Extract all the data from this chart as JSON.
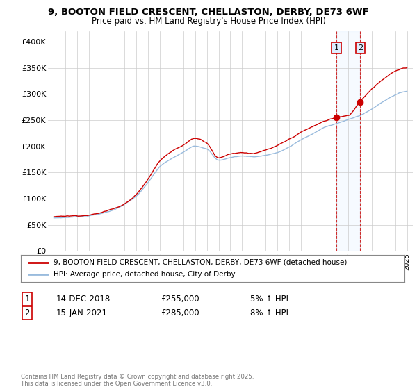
{
  "title": "9, BOOTON FIELD CRESCENT, CHELLASTON, DERBY, DE73 6WF",
  "subtitle": "Price paid vs. HM Land Registry's House Price Index (HPI)",
  "legend1": "9, BOOTON FIELD CRESCENT, CHELLASTON, DERBY, DE73 6WF (detached house)",
  "legend2": "HPI: Average price, detached house, City of Derby",
  "annotation1_date": "14-DEC-2018",
  "annotation1_price": "£255,000",
  "annotation1_hpi": "5% ↑ HPI",
  "annotation2_date": "15-JAN-2021",
  "annotation2_price": "£285,000",
  "annotation2_hpi": "8% ↑ HPI",
  "footnote": "Contains HM Land Registry data © Crown copyright and database right 2025.\nThis data is licensed under the Open Government Licence v3.0.",
  "red_color": "#cc0000",
  "blue_color": "#99bbdd",
  "shade_color": "#ddeeff",
  "ylim": [
    0,
    420000
  ],
  "yticks": [
    0,
    50000,
    100000,
    150000,
    200000,
    250000,
    300000,
    350000,
    400000
  ],
  "ytick_labels": [
    "£0",
    "£50K",
    "£100K",
    "£150K",
    "£200K",
    "£250K",
    "£300K",
    "£350K",
    "£400K"
  ],
  "sale1_x": 2019.0,
  "sale2_x": 2021.04,
  "sale1_y": 255000,
  "sale2_y": 285000,
  "xmin": 1994.5,
  "xmax": 2025.5,
  "hpi_seed_points_x": [
    1995,
    1996,
    1997,
    1998,
    1999,
    2000,
    2001,
    2002,
    2003,
    2004,
    2005,
    2006,
    2007,
    2008,
    2009,
    2010,
    2011,
    2012,
    2013,
    2014,
    2015,
    2016,
    2017,
    2018,
    2019,
    2020,
    2021,
    2022,
    2023,
    2024,
    2025
  ],
  "hpi_seed_y": [
    63000,
    64000,
    66000,
    68000,
    72000,
    78000,
    90000,
    105000,
    130000,
    160000,
    175000,
    187000,
    200000,
    195000,
    173000,
    178000,
    181000,
    180000,
    183000,
    188000,
    198000,
    212000,
    223000,
    235000,
    243000,
    250000,
    258000,
    270000,
    285000,
    298000,
    305000
  ],
  "red_seed_points_x": [
    1995,
    1996,
    1997,
    1998,
    1999,
    2000,
    2001,
    2002,
    2003,
    2004,
    2005,
    2006,
    2007,
    2008,
    2009,
    2010,
    2011,
    2012,
    2013,
    2014,
    2015,
    2016,
    2017,
    2018,
    2019,
    2020,
    2021,
    2022,
    2023,
    2024,
    2025
  ],
  "red_seed_y": [
    65000,
    67000,
    68000,
    70000,
    74000,
    82000,
    93000,
    110000,
    140000,
    175000,
    193000,
    205000,
    218000,
    210000,
    182000,
    190000,
    193000,
    192000,
    197000,
    204000,
    215000,
    228000,
    238000,
    248000,
    255000,
    258000,
    285000,
    310000,
    330000,
    345000,
    350000
  ],
  "ann_box_color": "#ddeeff",
  "ann_box_edge": "#cc0000"
}
